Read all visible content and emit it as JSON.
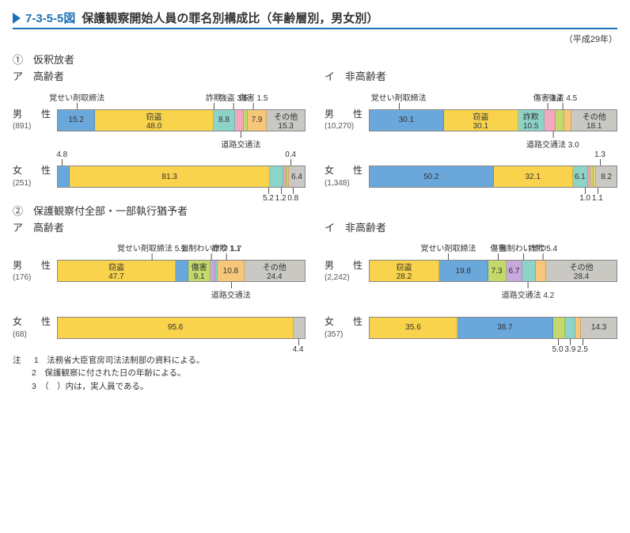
{
  "figure_number": "7-3-5-5図",
  "figure_title": "保護観察開始人員の罪名別構成比（年齢層別，男女別）",
  "year": "（平成29年）",
  "colors": {
    "stimulants": "#6aa8dc",
    "theft": "#f9d34c",
    "fraud": "#8ed3c8",
    "robbery": "#f4a8c0",
    "injury": "#c3d96b",
    "traffic": "#f6c679",
    "indecency": "#c9a8de",
    "other": "#c9c8c3",
    "border": "#888888"
  },
  "legend_labels": {
    "stimulants": "覚せい剤取締法",
    "theft": "窃盗",
    "fraud": "詐欺",
    "robbery": "強盗",
    "injury": "傷害",
    "traffic": "道路交通法",
    "indecency": "強制わいせつ",
    "other": "その他"
  },
  "sections": [
    {
      "id": "s1",
      "head": "①　仮釈放者",
      "panels": [
        {
          "title": "ア　高齢者",
          "rows": [
            {
              "label": "男　　性",
              "n": "(891)",
              "segments": [
                {
                  "k": "stimulants",
                  "v": 15.2,
                  "show": "15.2"
                },
                {
                  "k": "theft",
                  "v": 48.0,
                  "show": "窃盗\n48.0"
                },
                {
                  "k": "fraud",
                  "v": 8.8,
                  "show": "8.8"
                },
                {
                  "k": "robbery",
                  "v": 3.5,
                  "show": ""
                },
                {
                  "k": "injury",
                  "v": 1.5,
                  "show": ""
                },
                {
                  "k": "traffic",
                  "v": 7.9,
                  "show": "7.9"
                },
                {
                  "k": "other",
                  "v": 15.3,
                  "show": "その他\n15.3"
                }
              ],
              "top_callouts": [
                {
                  "text": "覚せい剤取締法",
                  "pos": 8
                },
                {
                  "text": "詐欺",
                  "pos": 63
                },
                {
                  "text": "強盗 3.5",
                  "pos": 71
                },
                {
                  "text": "傷害 1.5",
                  "pos": 79
                }
              ],
              "bottom_callouts": [
                {
                  "text": "道路交通法",
                  "pos": 74
                }
              ]
            },
            {
              "label": "女　　性",
              "n": "(251)",
              "segments": [
                {
                  "k": "stimulants",
                  "v": 4.8,
                  "show": ""
                },
                {
                  "k": "theft",
                  "v": 81.3,
                  "show": "81.3"
                },
                {
                  "k": "fraud",
                  "v": 5.2,
                  "show": ""
                },
                {
                  "k": "robbery",
                  "v": 1.2,
                  "show": ""
                },
                {
                  "k": "injury",
                  "v": 0.4,
                  "show": ""
                },
                {
                  "k": "traffic",
                  "v": 0.8,
                  "show": ""
                },
                {
                  "k": "other",
                  "v": 6.4,
                  "show": "6.4"
                }
              ],
              "top_callouts": [
                {
                  "text": "4.8",
                  "pos": 2
                },
                {
                  "text": "0.4",
                  "pos": 94
                }
              ],
              "bottom_callouts": [
                {
                  "text": "5.2",
                  "pos": 85
                },
                {
                  "text": "1.2",
                  "pos": 90
                },
                {
                  "text": "0.8",
                  "pos": 95
                }
              ]
            }
          ]
        },
        {
          "title": "イ　非高齢者",
          "rows": [
            {
              "label": "男　　性",
              "n": "(10,270)",
              "segments": [
                {
                  "k": "stimulants",
                  "v": 30.1,
                  "show": "30.1"
                },
                {
                  "k": "theft",
                  "v": 30.1,
                  "show": "窃盗\n30.1"
                },
                {
                  "k": "fraud",
                  "v": 10.5,
                  "show": "詐欺\n10.5"
                },
                {
                  "k": "robbery",
                  "v": 4.5,
                  "show": ""
                },
                {
                  "k": "injury",
                  "v": 3.7,
                  "show": ""
                },
                {
                  "k": "traffic",
                  "v": 3.0,
                  "show": ""
                },
                {
                  "k": "other",
                  "v": 18.1,
                  "show": "その他\n18.1"
                }
              ],
              "top_callouts": [
                {
                  "text": "覚せい剤取締法",
                  "pos": 12
                },
                {
                  "text": "傷害 3.7",
                  "pos": 72
                },
                {
                  "text": "強盗 4.5",
                  "pos": 78
                }
              ],
              "bottom_callouts": [
                {
                  "text": "道路交通法 3.0",
                  "pos": 74
                }
              ]
            },
            {
              "label": "女　　性",
              "n": "(1,348)",
              "segments": [
                {
                  "k": "stimulants",
                  "v": 50.2,
                  "show": "50.2"
                },
                {
                  "k": "theft",
                  "v": 32.1,
                  "show": "32.1"
                },
                {
                  "k": "fraud",
                  "v": 6.1,
                  "show": "6.1"
                },
                {
                  "k": "robbery",
                  "v": 1.0,
                  "show": ""
                },
                {
                  "k": "injury",
                  "v": 1.3,
                  "show": ""
                },
                {
                  "k": "traffic",
                  "v": 1.1,
                  "show": ""
                },
                {
                  "k": "other",
                  "v": 8.2,
                  "show": "8.2"
                }
              ],
              "top_callouts": [
                {
                  "text": "1.3",
                  "pos": 93
                }
              ],
              "bottom_callouts": [
                {
                  "text": "1.0",
                  "pos": 87
                },
                {
                  "text": "1.1",
                  "pos": 92
                }
              ]
            }
          ]
        }
      ]
    },
    {
      "id": "s2",
      "head": "②　保護観察付全部・一部執行猶予者",
      "panels": [
        {
          "title": "ア　高齢者",
          "rows": [
            {
              "label": "男　　性",
              "n": "(176)",
              "segments": [
                {
                  "k": "theft",
                  "v": 47.7,
                  "show": "窃盗\n47.7"
                },
                {
                  "k": "stimulants",
                  "v": 5.1,
                  "show": ""
                },
                {
                  "k": "injury",
                  "v": 9.1,
                  "show": "傷害\n9.1"
                },
                {
                  "k": "indecency",
                  "v": 1.7,
                  "show": ""
                },
                {
                  "k": "fraud",
                  "v": 1.1,
                  "show": ""
                },
                {
                  "k": "traffic",
                  "v": 10.8,
                  "show": "10.8"
                },
                {
                  "k": "other",
                  "v": 24.4,
                  "show": "その他\n24.4"
                }
              ],
              "top_callouts": [
                {
                  "text": "覚せい剤取締法 5.1",
                  "pos": 38
                },
                {
                  "text": "強制わいせつ 1.7",
                  "pos": 62
                },
                {
                  "text": "詐欺 1.1",
                  "pos": 68
                }
              ],
              "bottom_callouts": [
                {
                  "text": "道路交通法",
                  "pos": 70
                }
              ]
            },
            {
              "label": "女　　性",
              "n": "(68)",
              "segments": [
                {
                  "k": "theft",
                  "v": 95.6,
                  "show": "95.6"
                },
                {
                  "k": "other",
                  "v": 4.4,
                  "show": ""
                }
              ],
              "top_callouts": [],
              "bottom_callouts": [
                {
                  "text": "4.4",
                  "pos": 97
                }
              ]
            }
          ]
        },
        {
          "title": "イ　非高齢者",
          "rows": [
            {
              "label": "男　　性",
              "n": "(2,242)",
              "segments": [
                {
                  "k": "theft",
                  "v": 28.2,
                  "show": "窃盗\n28.2"
                },
                {
                  "k": "stimulants",
                  "v": 19.8,
                  "show": "19.8"
                },
                {
                  "k": "injury",
                  "v": 7.3,
                  "show": "7.3"
                },
                {
                  "k": "indecency",
                  "v": 6.7,
                  "show": "6.7"
                },
                {
                  "k": "fraud",
                  "v": 5.4,
                  "show": ""
                },
                {
                  "k": "traffic",
                  "v": 4.2,
                  "show": ""
                },
                {
                  "k": "other",
                  "v": 28.4,
                  "show": "その他\n28.4"
                }
              ],
              "top_callouts": [
                {
                  "text": "覚せい剤取締法",
                  "pos": 32
                },
                {
                  "text": "傷害",
                  "pos": 52
                },
                {
                  "text": "強制わいせつ",
                  "pos": 62
                },
                {
                  "text": "詐欺 5.4",
                  "pos": 70
                }
              ],
              "bottom_callouts": [
                {
                  "text": "道路交通法 4.2",
                  "pos": 64
                }
              ]
            },
            {
              "label": "女　　性",
              "n": "(357)",
              "segments": [
                {
                  "k": "theft",
                  "v": 35.6,
                  "show": "35.6"
                },
                {
                  "k": "stimulants",
                  "v": 38.7,
                  "show": "38.7"
                },
                {
                  "k": "injury",
                  "v": 5.0,
                  "show": ""
                },
                {
                  "k": "fraud",
                  "v": 3.9,
                  "show": ""
                },
                {
                  "k": "traffic",
                  "v": 2.5,
                  "show": ""
                },
                {
                  "k": "other",
                  "v": 14.3,
                  "show": "14.3"
                }
              ],
              "top_callouts": [],
              "bottom_callouts": [
                {
                  "text": "5.0",
                  "pos": 76
                },
                {
                  "text": "3.9",
                  "pos": 81
                },
                {
                  "text": "2.5",
                  "pos": 86
                }
              ]
            }
          ]
        }
      ]
    }
  ],
  "notes": [
    "1　法務省大臣官房司法法制部の資料による。",
    "2　保護観察に付された日の年齢による。",
    "3　（　）内は，実人員である。"
  ],
  "notes_head": "注"
}
